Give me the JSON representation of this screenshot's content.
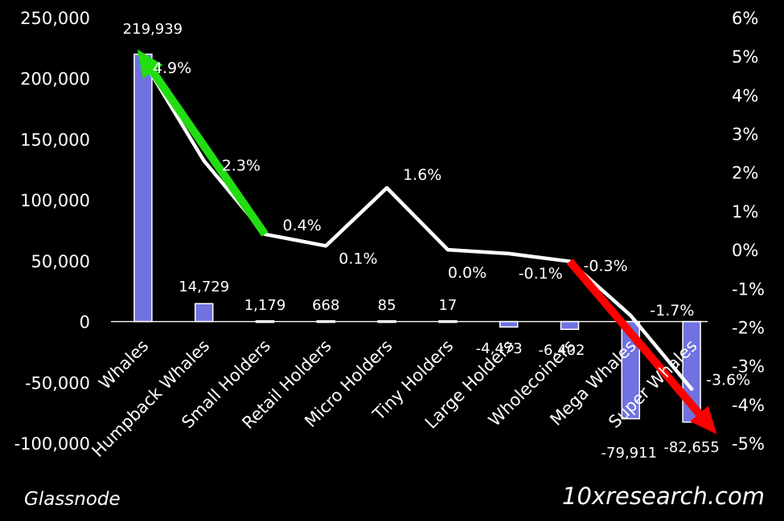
{
  "chart_data": {
    "type": "bar+line",
    "categories": [
      "Whales",
      "Humpback Whales",
      "Small Holders",
      "Retail Holders",
      "Micro Holders",
      "Tiny Holders",
      "Large Holders",
      "Wholecoiners",
      "Mega Whales",
      "Super Whales"
    ],
    "series": [
      {
        "type": "bar",
        "axis": "left",
        "values": [
          219939,
          14729,
          1179,
          668,
          85,
          17,
          -4473,
          -6402,
          -79911,
          -82655
        ],
        "labels": [
          "219,939",
          "14,729",
          "1,179",
          "668",
          "85",
          "17",
          "-4,473",
          "-6,402",
          "-79,911",
          "-82,655"
        ]
      },
      {
        "type": "line",
        "axis": "right",
        "values": [
          4.9,
          2.3,
          0.4,
          0.1,
          1.6,
          0.0,
          -0.1,
          -0.3,
          -1.7,
          -3.6
        ],
        "labels": [
          "4.9%",
          "2.3%",
          "0.4%",
          "0.1%",
          "1.6%",
          "0.0%",
          "-0.1%",
          "-0.3%",
          "-1.7%",
          "-3.6%"
        ]
      }
    ],
    "left_axis": {
      "ylim": [
        -100000,
        250000
      ],
      "ticks": [
        -100000,
        -50000,
        0,
        50000,
        100000,
        150000,
        200000,
        250000
      ],
      "tick_labels": [
        "-100,000",
        "-50,000",
        "0",
        "50,000",
        "100,000",
        "150,000",
        "200,000",
        "250,000"
      ]
    },
    "right_axis": {
      "ylim": [
        -5,
        6
      ],
      "ticks": [
        -5,
        -4,
        -3,
        -2,
        -1,
        0,
        1,
        2,
        3,
        4,
        5,
        6
      ],
      "tick_labels": [
        "-5%",
        "-4%",
        "-3%",
        "-2%",
        "-1%",
        "0%",
        "1%",
        "2%",
        "3%",
        "4%",
        "5%",
        "6%"
      ]
    },
    "annotations": [
      {
        "type": "arrow",
        "color": "#22dd11",
        "from": "Small Holders",
        "to": "Whales"
      },
      {
        "type": "arrow",
        "color": "#ff0000",
        "from": "Wholecoiners",
        "to": "Super Whales"
      }
    ],
    "colors": {
      "background": "#000000",
      "bar": "#6f72e0",
      "bar_edge": "#ffffff",
      "line": "#ffffff",
      "text": "#ffffff"
    },
    "grid": false,
    "legend": "none"
  },
  "source_left": "Glassnode",
  "source_right": "10xresearch.com"
}
